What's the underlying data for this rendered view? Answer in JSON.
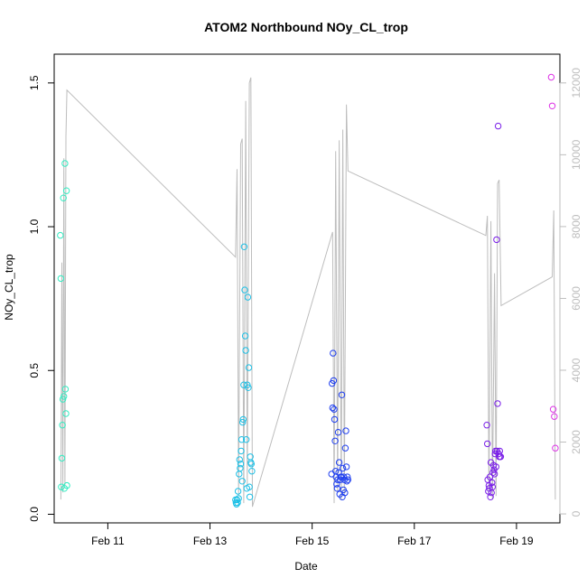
{
  "chart_data": {
    "type": "scatter",
    "title": "ATOM2 Northbound NOy_CL_trop",
    "xlabel": "Date",
    "ylabel": "NOy_CL_trop",
    "x_day_range": [
      9.95,
      19.85
    ],
    "ylim": [
      -0.03,
      1.6
    ],
    "x_ticks": [
      {
        "label": "Feb 11",
        "day": 11
      },
      {
        "label": "Feb 13",
        "day": 13
      },
      {
        "label": "Feb 15",
        "day": 15
      },
      {
        "label": "Feb 17",
        "day": 17
      },
      {
        "label": "Feb 19",
        "day": 19
      }
    ],
    "y_ticks": [
      0.0,
      0.5,
      1.0,
      1.5
    ],
    "y_tick_labels": [
      "0.0",
      "0.5",
      "1.0",
      "1.5"
    ],
    "y2_ticks": [
      0,
      2000,
      4000,
      6000,
      8000,
      10000,
      12000
    ],
    "y2_tick_labels": [
      "0",
      "2000",
      "4000",
      "6000",
      "8000",
      "10000",
      "12000"
    ],
    "y2_range": [
      -250,
      12800
    ],
    "grid": false,
    "secondary_series": {
      "color": "#bdbdbd",
      "points": [
        [
          10.08,
          400
        ],
        [
          10.1,
          7000
        ],
        [
          10.12,
          600
        ],
        [
          10.14,
          9900
        ],
        [
          10.16,
          800
        ],
        [
          10.18,
          10500
        ],
        [
          10.2,
          11800
        ],
        [
          13.5,
          7150
        ],
        [
          13.53,
          9600
        ],
        [
          13.56,
          500
        ],
        [
          13.6,
          10300
        ],
        [
          13.63,
          10450
        ],
        [
          13.66,
          300
        ],
        [
          13.7,
          11500
        ],
        [
          13.73,
          800
        ],
        [
          13.77,
          12000
        ],
        [
          13.8,
          12150
        ],
        [
          13.83,
          200
        ],
        [
          15.4,
          7850
        ],
        [
          15.43,
          300
        ],
        [
          15.46,
          10100
        ],
        [
          15.5,
          600
        ],
        [
          15.53,
          10400
        ],
        [
          15.57,
          400
        ],
        [
          15.6,
          10700
        ],
        [
          15.63,
          500
        ],
        [
          15.67,
          11400
        ],
        [
          15.7,
          9550
        ],
        [
          18.4,
          7750
        ],
        [
          18.43,
          8300
        ],
        [
          18.46,
          500
        ],
        [
          18.5,
          8150
        ],
        [
          18.53,
          400
        ],
        [
          18.57,
          6700
        ],
        [
          18.6,
          500
        ],
        [
          18.63,
          9200
        ],
        [
          18.66,
          9300
        ],
        [
          18.7,
          5800
        ],
        [
          19.7,
          6600
        ],
        [
          19.73,
          8450
        ],
        [
          19.76,
          400
        ]
      ]
    },
    "series": [
      {
        "name": "",
        "color": "#33ecc2",
        "x": [
          10.07,
          10.08,
          10.09,
          10.1,
          10.11,
          10.12,
          10.13,
          10.14,
          10.15,
          10.16,
          10.17,
          10.18,
          10.19,
          10.2
        ],
        "y": [
          0.97,
          0.82,
          0.095,
          0.195,
          0.31,
          0.4,
          1.1,
          0.41,
          0.09,
          1.22,
          0.435,
          0.35,
          1.125,
          0.1
        ]
      },
      {
        "name": "",
        "color": "#1ec0e6",
        "x": [
          13.5,
          13.51,
          13.52,
          13.53,
          13.54,
          13.55,
          13.56,
          13.57,
          13.58,
          13.59,
          13.6,
          13.61,
          13.62,
          13.63,
          13.64,
          13.65,
          13.66,
          13.67,
          13.68,
          13.69,
          13.7,
          13.71,
          13.72,
          13.73,
          13.74,
          13.75,
          13.76,
          13.77,
          13.78,
          13.79,
          13.8,
          13.81,
          13.82
        ],
        "y": [
          0.05,
          0.04,
          0.035,
          0.05,
          0.04,
          0.08,
          0.055,
          0.14,
          0.19,
          0.16,
          0.175,
          0.22,
          0.26,
          0.115,
          0.32,
          0.33,
          0.45,
          0.93,
          0.78,
          0.62,
          0.57,
          0.26,
          0.09,
          0.45,
          0.755,
          0.44,
          0.51,
          0.095,
          0.06,
          0.2,
          0.18,
          0.175,
          0.15
        ]
      },
      {
        "name": "",
        "color": "#1f3ff0",
        "x": [
          15.38,
          15.39,
          15.4,
          15.41,
          15.42,
          15.43,
          15.44,
          15.45,
          15.46,
          15.47,
          15.48,
          15.49,
          15.5,
          15.51,
          15.52,
          15.53,
          15.54,
          15.55,
          15.56,
          15.57,
          15.58,
          15.59,
          15.6,
          15.61,
          15.62,
          15.63,
          15.64,
          15.65,
          15.66,
          15.67,
          15.68,
          15.69,
          15.7
        ],
        "y": [
          0.14,
          0.455,
          0.37,
          0.56,
          0.465,
          0.365,
          0.33,
          0.255,
          0.15,
          0.13,
          0.105,
          0.09,
          0.12,
          0.285,
          0.145,
          0.18,
          0.07,
          0.12,
          0.13,
          0.13,
          0.415,
          0.06,
          0.16,
          0.085,
          0.13,
          0.12,
          0.075,
          0.23,
          0.29,
          0.165,
          0.115,
          0.13,
          0.12
        ]
      },
      {
        "name": "",
        "color": "#7a1fe8",
        "x": [
          18.42,
          18.43,
          18.44,
          18.45,
          18.46,
          18.47,
          18.48,
          18.49,
          18.5,
          18.51,
          18.52,
          18.53,
          18.54,
          18.55,
          18.56,
          18.57,
          18.58,
          18.59,
          18.6,
          18.61,
          18.62,
          18.63,
          18.64,
          18.65,
          18.66,
          18.67,
          18.68,
          18.69
        ],
        "y": [
          0.31,
          0.245,
          0.12,
          0.08,
          0.1,
          0.09,
          0.13,
          0.06,
          0.18,
          0.075,
          0.11,
          0.095,
          0.145,
          0.17,
          0.155,
          0.14,
          0.21,
          0.22,
          0.165,
          0.955,
          0.22,
          0.385,
          1.35,
          0.21,
          0.2,
          0.22,
          0.2,
          0.2
        ]
      },
      {
        "name": "",
        "color": "#dd33e6",
        "x": [
          19.68,
          19.7,
          19.72,
          19.74,
          19.76
        ],
        "y": [
          1.52,
          1.42,
          0.365,
          0.34,
          0.23
        ]
      }
    ]
  }
}
